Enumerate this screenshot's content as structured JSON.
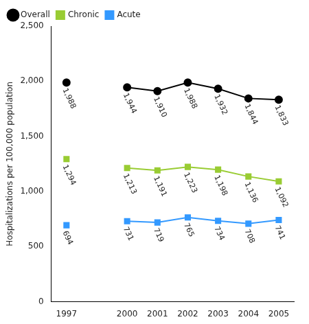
{
  "chart_data": {
    "type": "line",
    "y_label": "Hospitalizations per 100,000 population",
    "categories": [
      "1997",
      null,
      "2000",
      "2001",
      "2002",
      "2003",
      "2004",
      "2005"
    ],
    "series": [
      {
        "name": "Overall",
        "color": "#000000",
        "marker": "circle",
        "values": [
          1988,
          null,
          1944,
          1910,
          1988,
          1932,
          1844,
          1833
        ],
        "value_labels": [
          "1,988",
          null,
          "1,944",
          "1,910",
          "1,988",
          "1,932",
          "1,844",
          "1,833"
        ]
      },
      {
        "name": "Chronic",
        "color": "#99cc33",
        "marker": "square",
        "values": [
          1294,
          null,
          1213,
          1191,
          1223,
          1198,
          1136,
          1092
        ],
        "value_labels": [
          "1,294",
          null,
          "1,213",
          "1,191",
          "1,223",
          "1,198",
          "1,136",
          "1,092"
        ]
      },
      {
        "name": "Acute",
        "color": "#3399ff",
        "marker": "square",
        "values": [
          694,
          null,
          731,
          719,
          765,
          734,
          708,
          741
        ]
      }
    ],
    "ylim": [
      0,
      2500
    ],
    "yticks": [
      0,
      500,
      {
        "value": 1000,
        "label": "1,000"
      },
      {
        "value": 1500,
        "label": "1,500"
      },
      {
        "value": 2000,
        "label": "2,000"
      },
      {
        "value": 2500,
        "label": "2,500"
      }
    ],
    "grid": false,
    "legend": "upper left",
    "data_labels": true
  }
}
